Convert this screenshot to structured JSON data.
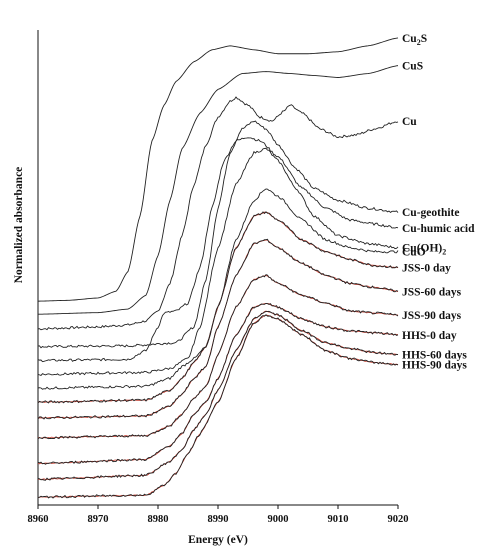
{
  "chart_data": {
    "type": "line",
    "title": "",
    "xlabel": "Energy (eV)",
    "ylabel": "Normalized absorbance",
    "xlim": [
      8960,
      9020
    ],
    "x_ticks": [
      "8960",
      "8970",
      "8980",
      "8990",
      "9000",
      "9010",
      "9020"
    ],
    "y_ticks": "none",
    "grid": false,
    "legend": "labels at right end of each curve",
    "line_color": "#222222",
    "fit_color": "#c0392b",
    "series": [
      {
        "name": "Cu2S",
        "label_main": "Cu",
        "label_sub": "2",
        "label_tail": "S",
        "x": [
          8960,
          8965,
          8970,
          8973,
          8975,
          8977,
          8979,
          8981,
          8983,
          8986,
          8989,
          8992,
          8996,
          9000,
          9005,
          9010,
          9015,
          9020
        ],
        "y": [
          0.165,
          0.167,
          0.173,
          0.19,
          0.24,
          0.38,
          0.57,
          0.66,
          0.72,
          0.77,
          0.8,
          0.81,
          0.8,
          0.79,
          0.79,
          0.795,
          0.81,
          0.83
        ]
      },
      {
        "name": "CuS",
        "label_main": "CuS",
        "label_sub": "",
        "label_tail": "",
        "x": [
          8960,
          8970,
          8975,
          8978,
          8980,
          8982,
          8984,
          8987,
          8990,
          8994,
          8998,
          9002,
          9006,
          9010,
          9015,
          9020
        ],
        "y": [
          0.132,
          0.136,
          0.145,
          0.18,
          0.28,
          0.42,
          0.55,
          0.64,
          0.7,
          0.74,
          0.745,
          0.74,
          0.735,
          0.73,
          0.74,
          0.76
        ]
      },
      {
        "name": "Cu",
        "label_main": "Cu",
        "label_sub": "",
        "label_tail": "",
        "x": [
          8960,
          8970,
          8975,
          8978,
          8980,
          8982,
          8984,
          8986,
          8988,
          8990,
          8992,
          8993,
          8995,
          8997,
          8999,
          9001,
          9002,
          9004,
          9007,
          9010,
          9013,
          9016,
          9020
        ],
        "y": [
          0.095,
          0.1,
          0.105,
          0.115,
          0.14,
          0.21,
          0.33,
          0.46,
          0.56,
          0.63,
          0.67,
          0.68,
          0.66,
          0.63,
          0.62,
          0.645,
          0.66,
          0.64,
          0.6,
          0.58,
          0.585,
          0.6,
          0.62
        ]
      },
      {
        "name": "Cu-geothite",
        "label_main": "Cu-geothite",
        "label_sub": "",
        "label_tail": "",
        "x": [
          8960,
          8975,
          8983,
          8986,
          8988,
          8990,
          8992,
          8994,
          8996,
          8998,
          9000,
          9003,
          9006,
          9010,
          9015,
          9020
        ],
        "y": [
          0.05,
          0.052,
          0.06,
          0.1,
          0.22,
          0.4,
          0.54,
          0.6,
          0.62,
          0.6,
          0.56,
          0.5,
          0.45,
          0.42,
          0.4,
          0.39
        ]
      },
      {
        "name": "Cu-humic acid",
        "label_main": "Cu-humic acid",
        "label_sub": "",
        "label_tail": "",
        "x": [
          8960,
          8975,
          8978,
          8980,
          8981,
          8983,
          8985,
          8987,
          8989,
          8991,
          8993,
          8995,
          8997,
          9000,
          9004,
          9008,
          9012,
          9016,
          9020
        ],
        "y": [
          0.015,
          0.018,
          0.04,
          0.1,
          0.135,
          0.14,
          0.16,
          0.25,
          0.4,
          0.52,
          0.57,
          0.58,
          0.57,
          0.53,
          0.45,
          0.4,
          0.37,
          0.36,
          0.35
        ]
      },
      {
        "name": "Cu(OH)2",
        "label_main": "Cu(OH)",
        "label_sub": "2",
        "label_tail": "",
        "x": [
          8960,
          8978,
          8982,
          8985,
          8987,
          8990,
          8993,
          8996,
          8998,
          9000,
          9003,
          9006,
          9010,
          9015,
          9020
        ],
        "y": [
          -0.02,
          -0.015,
          -0.005,
          0.02,
          0.1,
          0.3,
          0.46,
          0.54,
          0.55,
          0.52,
          0.45,
          0.38,
          0.33,
          0.31,
          0.3
        ]
      },
      {
        "name": "CuO",
        "label_main": "CuO",
        "label_sub": "",
        "label_tail": "",
        "x": [
          8960,
          8978,
          8982,
          8984,
          8986,
          8988,
          8990,
          8993,
          8996,
          8998,
          9000,
          9004,
          9008,
          9012,
          9016,
          9020
        ],
        "y": [
          -0.055,
          -0.05,
          -0.03,
          0.0,
          0.02,
          0.05,
          0.15,
          0.32,
          0.42,
          0.45,
          0.43,
          0.37,
          0.32,
          0.3,
          0.29,
          0.29
        ]
      },
      {
        "name": "JSS-0 day",
        "label_main": "JSS-0 day",
        "label_sub": "",
        "label_tail": "",
        "x": [
          8960,
          8978,
          8982,
          8984,
          8986,
          8988,
          8990,
          8993,
          8996,
          8998,
          9000,
          9004,
          9008,
          9012,
          9016,
          9020
        ],
        "y": [
          -0.09,
          -0.085,
          -0.06,
          -0.03,
          0.01,
          0.05,
          0.15,
          0.3,
          0.38,
          0.39,
          0.37,
          0.32,
          0.29,
          0.27,
          0.255,
          0.25
        ]
      },
      {
        "name": "JSS-60 days",
        "label_main": "JSS-60 days",
        "label_sub": "",
        "label_tail": "",
        "x": [
          8960,
          8978,
          8982,
          8984,
          8986,
          8988,
          8990,
          8993,
          8996,
          8998,
          9000,
          9004,
          9008,
          9012,
          9016,
          9020
        ],
        "y": [
          -0.13,
          -0.125,
          -0.1,
          -0.07,
          -0.03,
          0.0,
          0.1,
          0.23,
          0.31,
          0.32,
          0.3,
          0.26,
          0.23,
          0.21,
          0.2,
          0.19
        ]
      },
      {
        "name": "JSS-90 days",
        "label_main": "JSS-90 days",
        "label_sub": "",
        "label_tail": "",
        "x": [
          8960,
          8978,
          8982,
          8984,
          8986,
          8988,
          8990,
          8993,
          8996,
          8998,
          9000,
          9004,
          9008,
          9012,
          9016,
          9020
        ],
        "y": [
          -0.18,
          -0.175,
          -0.15,
          -0.12,
          -0.08,
          -0.05,
          0.03,
          0.15,
          0.22,
          0.23,
          0.21,
          0.18,
          0.16,
          0.14,
          0.135,
          0.13
        ]
      },
      {
        "name": "HHS-0 day",
        "label_main": "HHS-0 day",
        "label_sub": "",
        "label_tail": "",
        "x": [
          8960,
          8978,
          8982,
          8984,
          8986,
          8988,
          8990,
          8993,
          8996,
          8998,
          9000,
          9004,
          9008,
          9012,
          9016,
          9020
        ],
        "y": [
          -0.245,
          -0.235,
          -0.2,
          -0.17,
          -0.12,
          -0.09,
          -0.03,
          0.08,
          0.15,
          0.16,
          0.15,
          0.12,
          0.1,
          0.09,
          0.085,
          0.08
        ]
      },
      {
        "name": "HHS-60 days",
        "label_main": "HHS-60 days",
        "label_sub": "",
        "label_tail": "",
        "x": [
          8960,
          8978,
          8982,
          8984,
          8986,
          8988,
          8990,
          8993,
          8996,
          8998,
          9000,
          9004,
          9008,
          9012,
          9016,
          9020
        ],
        "y": [
          -0.285,
          -0.275,
          -0.24,
          -0.21,
          -0.16,
          -0.12,
          -0.06,
          0.04,
          0.12,
          0.14,
          0.13,
          0.09,
          0.06,
          0.045,
          0.035,
          0.03
        ]
      },
      {
        "name": "HHS-90 days",
        "label_main": "HHS-90 days",
        "label_sub": "",
        "label_tail": "",
        "x": [
          8960,
          8978,
          8981,
          8983,
          8985,
          8987,
          8990,
          8993,
          8996,
          8998,
          9000,
          9004,
          9008,
          9012,
          9016,
          9020
        ],
        "y": [
          -0.33,
          -0.325,
          -0.3,
          -0.27,
          -0.22,
          -0.17,
          -0.09,
          0.02,
          0.11,
          0.13,
          0.12,
          0.08,
          0.04,
          0.02,
          0.01,
          0.005
        ]
      }
    ]
  }
}
